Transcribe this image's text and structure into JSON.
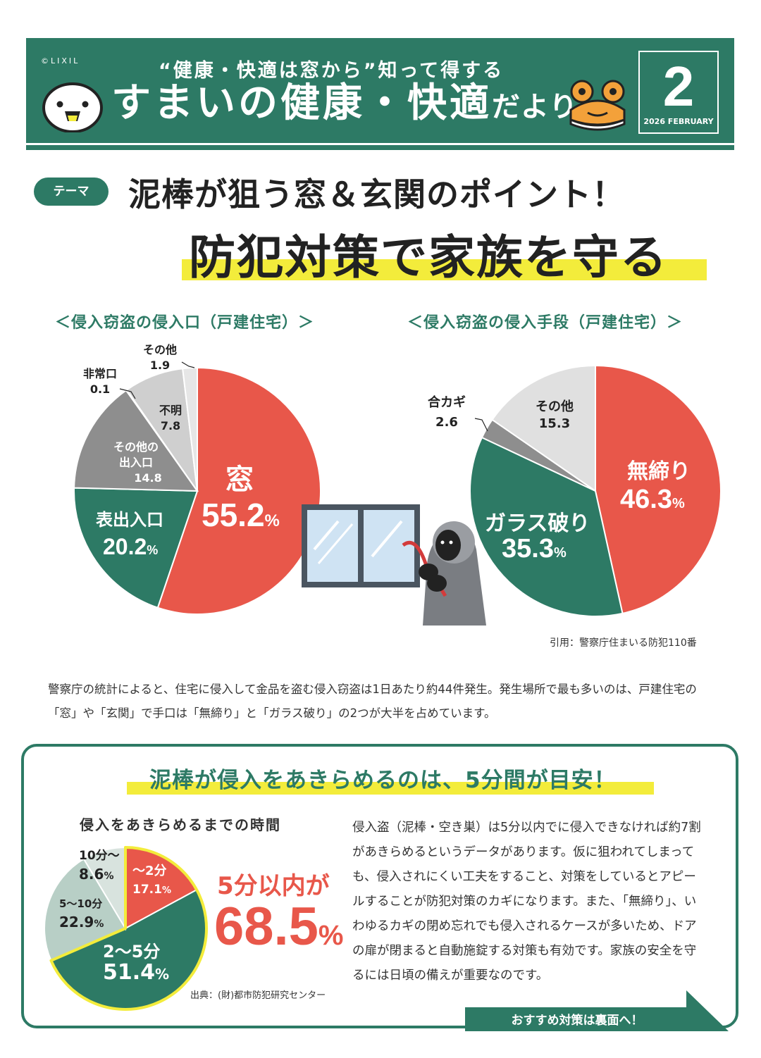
{
  "header": {
    "copyright": "©LIXIL",
    "subtitle": "“健康・快適は窓から”知って得する",
    "title_main": "すまいの健康・快適",
    "title_suffix": "だより",
    "issue_number": "2",
    "issue_date": "2026 FEBRUARY"
  },
  "theme": {
    "tag": "テーマ",
    "line1": "泥棒が狙う窓＆玄関のポイント！",
    "line2": "防犯対策で家族を守る"
  },
  "chart_data": [
    {
      "type": "pie",
      "title": "＜侵入窃盗の侵入口（戸建住宅）＞",
      "unit": "%",
      "slices": [
        {
          "label": "窓",
          "value": 55.2
        },
        {
          "label": "表出入口",
          "value": 20.2
        },
        {
          "label": "その他の出入口",
          "value": 14.8
        },
        {
          "label": "非常口",
          "value": 0.1
        },
        {
          "label": "不明",
          "value": 7.8
        },
        {
          "label": "その他",
          "value": 1.9
        }
      ],
      "colors": [
        "#e8574a",
        "#2d7a65",
        "#8e8e8e",
        "#5f5f5f",
        "#cfcfcf",
        "#e6e6e6"
      ]
    },
    {
      "type": "pie",
      "title": "＜侵入窃盗の侵入手段（戸建住宅）＞",
      "unit": "%",
      "slices": [
        {
          "label": "無締り",
          "value": 46.3
        },
        {
          "label": "ガラス破り",
          "value": 35.3
        },
        {
          "label": "合カギ",
          "value": 2.6
        },
        {
          "label": "その他",
          "value": 15.3
        }
      ],
      "colors": [
        "#e8574a",
        "#2d7a65",
        "#8e8e8e",
        "#e0e0e0"
      ]
    },
    {
      "type": "pie",
      "title": "侵入をあきらめるまでの時間",
      "unit": "%",
      "slices": [
        {
          "label": "〜2分",
          "value": 17.1
        },
        {
          "label": "2〜5分",
          "value": 51.4
        },
        {
          "label": "5〜10分",
          "value": 22.9
        },
        {
          "label": "10分〜",
          "value": 8.6
        }
      ],
      "colors": [
        "#e8574a",
        "#2d7a65",
        "#b8cfc6",
        "#d8e3de"
      ],
      "highlight": "5分以内が68.5%"
    }
  ],
  "labels": {
    "c1_window": "窓",
    "c1_window_pct": "55.2",
    "c1_front": "表出入口",
    "c1_front_pct": "20.2",
    "c1_other_door_1": "その他の",
    "c1_other_door_2": "出入口",
    "c1_other_door_val": "14.8",
    "c1_unknown": "不明",
    "c1_unknown_val": "7.8",
    "c1_emergency": "非常口",
    "c1_emergency_val": "0.1",
    "c1_other": "その他",
    "c1_other_val": "1.9",
    "c2_unlocked": "無締り",
    "c2_unlocked_pct": "46.3",
    "c2_glass": "ガラス破り",
    "c2_glass_pct": "35.3",
    "c2_key": "合カギ",
    "c2_key_val": "2.6",
    "c2_other": "その他",
    "c2_other_val": "15.3",
    "c3_lt2": "〜2分",
    "c3_lt2_val": "17.1",
    "c3_2to5": "2〜5分",
    "c3_2to5_val": "51.4",
    "c3_5to10": "5〜10分",
    "c3_5to10_val": "22.9",
    "c3_10plus": "10分〜",
    "c3_10plus_val": "8.6",
    "pct": "%"
  },
  "source1": "引用：警察庁住まいる防犯110番",
  "description": "警察庁の統計によると、住宅に侵入して金品を盗む侵入窃盗は1日あたり約44件発生。発生場所で最も多いのは、戸建住宅の「窓」や「玄関」で手口は「無締り」と「ガラス破り」の2つが大半を占めています。",
  "bottom": {
    "title": "泥棒が侵入をあきらめるのは、5分間が目安！",
    "chart_heading": "侵入をあきらめるまでの時間",
    "lead": "5分以内が",
    "big_value": "68.5",
    "big_unit": "%",
    "source": "出典：(財)都市防犯研究センター",
    "text": "侵入盗（泥棒・空き巣）は5分以内でに侵入できなければ約7割があきらめるというデータがあります。仮に狙われてしまっても、侵入されにくい工夫をすること、対策をしているとアピールすることが防犯対策のカギになります。また、「無締り」、いわゆるカギの閉め忘れでも侵入されるケースが多いため、ドアの扉が閉まると自動施錠する対策も有効です。家族の安全を守るには日頃の備えが重要なのです。",
    "next": "おすすめ対策は裏面へ！"
  }
}
